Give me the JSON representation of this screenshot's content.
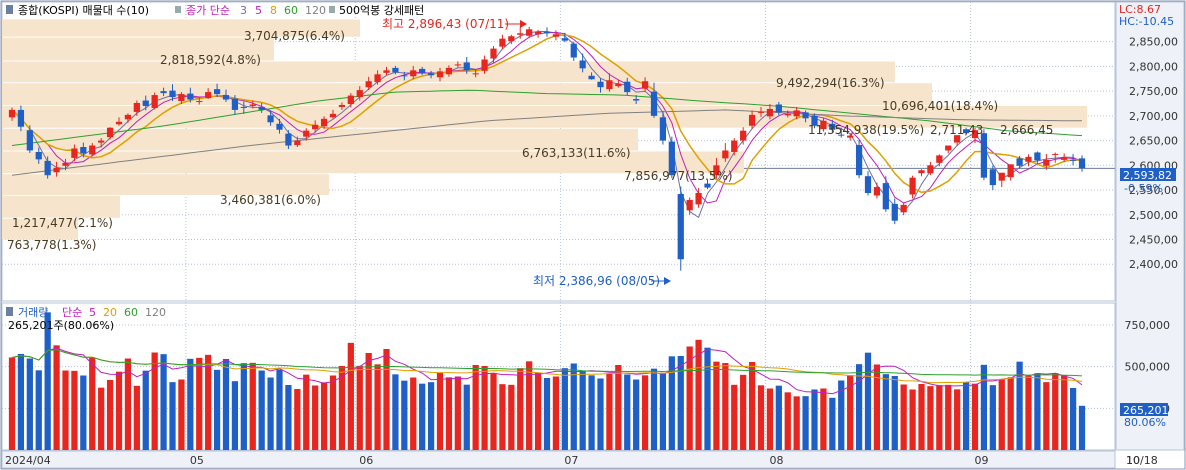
{
  "header": {
    "title": "종합(KOSPI) 매물대 수(10)",
    "ma_label": "종가 단순",
    "ma_periods": [
      "3",
      "5",
      "8",
      "60",
      "120"
    ],
    "pattern_label": "500억봉 강세패턴"
  },
  "indicators": {
    "lc": "LC:8.67",
    "hc": "HC:-10.45"
  },
  "volume_header": {
    "label": "거래량",
    "ma_label": "단순",
    "ma_periods": [
      "5",
      "20",
      "60",
      "120"
    ],
    "current_line": "265,201주(80.06%)"
  },
  "price_axis": [
    "2,850,00",
    "2,800,00",
    "2,750,00",
    "2,700,00",
    "2,650,00",
    "2,600,00",
    "2,550,00",
    "2,500,00",
    "2,450,00",
    "2,400,00"
  ],
  "volume_axis": [
    "750,000",
    "500,000",
    "250,000"
  ],
  "x_axis": [
    "2024/04",
    "05",
    "06",
    "07",
    "08",
    "09",
    "10",
    "10/18"
  ],
  "current": {
    "price": "2,593,82",
    "change": "-0.59%",
    "volume": "265,201",
    "volume_pct": "80.06%"
  },
  "annotations": {
    "high": "최고 2,896,43 (07/11)",
    "low": "최저 2,386,96 (08/05)"
  },
  "profile_labels": [
    "3,704,875(6.4%)",
    "2,818,592(4.8%)",
    "9,492,294(16.3%)",
    "10,696,401(18.4%)",
    "11,354,938(19.5%)",
    "6,763,133(11.6%)",
    "7,856,977(13.5%)",
    "3,460,381(6.0%)",
    "1,217,477(2.1%)",
    "763,778(1.3%)"
  ],
  "level_labels": [
    "2,711,43",
    "2,666,45"
  ],
  "colors": {
    "up": "#e8251e",
    "down": "#1f5fc8",
    "ma3": "#7070a8",
    "ma5": "#c020c0",
    "ma8": "#e0a000",
    "ma60": "#2ea02e",
    "ma120": "#808080",
    "profile": "#f7e4cc",
    "last_price": "#1f5fc8",
    "grid": "#b8c4d8"
  },
  "chart_data": {
    "type": "candlestick",
    "title": "종합(KOSPI)",
    "price_range": [
      2360,
      2910
    ],
    "volume_range": [
      0,
      900000
    ],
    "month_labels": [
      "2024/04",
      "05",
      "06",
      "07",
      "08",
      "09",
      "10"
    ],
    "closes": [
      2712,
      2678,
      2630,
      2612,
      2580,
      2595,
      2605,
      2634,
      2624,
      2640,
      2650,
      2676,
      2688,
      2702,
      2726,
      2720,
      2742,
      2746,
      2738,
      2744,
      2733,
      2730,
      2748,
      2744,
      2733,
      2712,
      2716,
      2723,
      2712,
      2687,
      2672,
      2640,
      2650,
      2670,
      2682,
      2694,
      2704,
      2722,
      2741,
      2752,
      2770,
      2784,
      2792,
      2788,
      2780,
      2792,
      2787,
      2782,
      2790,
      2797,
      2804,
      2792,
      2786,
      2814,
      2836,
      2856,
      2861,
      2867,
      2875,
      2870,
      2867,
      2865,
      2852,
      2818,
      2796,
      2774,
      2758,
      2772,
      2765,
      2748,
      2731,
      2770,
      2700,
      2650,
      2580,
      2410,
      2530,
      2544,
      2555,
      2600,
      2630,
      2650,
      2670,
      2702,
      2708,
      2714,
      2707,
      2704,
      2711,
      2695,
      2680,
      2690,
      2672,
      2660,
      2660,
      2580,
      2544,
      2556,
      2511,
      2488,
      2520,
      2575,
      2590,
      2600,
      2620,
      2640,
      2661,
      2665,
      2671,
      2575,
      2560,
      2585,
      2602,
      2599,
      2617,
      2610,
      2611,
      2623,
      2616,
      2609,
      2594
    ],
    "opens": [
      2697,
      2712,
      2671,
      2627,
      2609,
      2586,
      2599,
      2615,
      2637,
      2622,
      2646,
      2657,
      2683,
      2693,
      2708,
      2731,
      2716,
      2750,
      2751,
      2730,
      2745,
      2729,
      2736,
      2754,
      2742,
      2735,
      2718,
      2720,
      2718,
      2701,
      2684,
      2664,
      2641,
      2658,
      2673,
      2679,
      2697,
      2718,
      2724,
      2738,
      2758,
      2768,
      2787,
      2797,
      2782,
      2780,
      2795,
      2786,
      2778,
      2784,
      2802,
      2808,
      2786,
      2791,
      2816,
      2840,
      2851,
      2864,
      2862,
      2865,
      2870,
      2860,
      2857,
      2846,
      2812,
      2781,
      2769,
      2754,
      2760,
      2769,
      2734,
      2755,
      2749,
      2697,
      2648,
      2542,
      2509,
      2521,
      2563,
      2580,
      2614,
      2627,
      2650,
      2680,
      2706,
      2699,
      2723,
      2701,
      2699,
      2707,
      2700,
      2673,
      2684,
      2662,
      2656,
      2641,
      2578,
      2539,
      2564,
      2522,
      2505,
      2541,
      2584,
      2584,
      2605,
      2630,
      2646,
      2673,
      2655,
      2665,
      2592,
      2569,
      2576,
      2614,
      2607,
      2626,
      2599,
      2623,
      2611,
      2611,
      2614
    ],
    "highs": [
      2717,
      2721,
      2681,
      2636,
      2618,
      2607,
      2613,
      2642,
      2646,
      2645,
      2655,
      2677,
      2697,
      2705,
      2731,
      2741,
      2747,
      2757,
      2764,
      2748,
      2757,
      2739,
      2756,
      2765,
      2753,
      2742,
      2729,
      2731,
      2726,
      2711,
      2694,
      2671,
      2658,
      2675,
      2691,
      2699,
      2712,
      2727,
      2746,
      2760,
      2779,
      2792,
      2799,
      2801,
      2789,
      2801,
      2799,
      2791,
      2797,
      2802,
      2810,
      2819,
      2794,
      2822,
      2841,
      2864,
      2864,
      2881,
      2880,
      2874,
      2879,
      2873,
      2868,
      2850,
      2826,
      2788,
      2776,
      2786,
      2772,
      2777,
      2742,
      2778,
      2767,
      2710,
      2658,
      2557,
      2535,
      2554,
      2571,
      2615,
      2645,
      2655,
      2677,
      2711,
      2718,
      2724,
      2728,
      2711,
      2718,
      2711,
      2705,
      2696,
      2692,
      2676,
      2665,
      2651,
      2588,
      2565,
      2578,
      2533,
      2525,
      2579,
      2592,
      2607,
      2622,
      2640,
      2656,
      2676,
      2676,
      2673,
      2599,
      2576,
      2593,
      2619,
      2622,
      2628,
      2623,
      2626,
      2624,
      2623,
      2620
    ],
    "lows": [
      2690,
      2669,
      2625,
      2603,
      2573,
      2577,
      2590,
      2608,
      2616,
      2618,
      2636,
      2652,
      2680,
      2686,
      2700,
      2711,
      2713,
      2740,
      2730,
      2724,
      2727,
      2723,
      2734,
      2738,
      2728,
      2702,
      2704,
      2715,
      2706,
      2680,
      2664,
      2633,
      2637,
      2650,
      2666,
      2674,
      2695,
      2712,
      2717,
      2731,
      2752,
      2763,
      2782,
      2784,
      2772,
      2774,
      2783,
      2776,
      2770,
      2779,
      2798,
      2785,
      2778,
      2785,
      2806,
      2835,
      2845,
      2856,
      2857,
      2858,
      2860,
      2853,
      2849,
      2811,
      2788,
      2773,
      2747,
      2749,
      2757,
      2742,
      2724,
      2749,
      2696,
      2642,
      2574,
      2387,
      2500,
      2514,
      2552,
      2573,
      2607,
      2620,
      2642,
      2674,
      2698,
      2693,
      2701,
      2697,
      2693,
      2687,
      2675,
      2668,
      2667,
      2656,
      2650,
      2574,
      2539,
      2533,
      2506,
      2481,
      2499,
      2533,
      2578,
      2580,
      2598,
      2624,
      2639,
      2662,
      2645,
      2570,
      2550,
      2556,
      2569,
      2593,
      2598,
      2603,
      2591,
      2605,
      2607,
      2600,
      2587
    ],
    "volumes": [
      555000,
      576000,
      549000,
      478000,
      826000,
      628000,
      477000,
      475000,
      447000,
      554000,
      374000,
      420000,
      470000,
      549000,
      385000,
      476000,
      585000,
      575000,
      407000,
      423000,
      547000,
      553000,
      571000,
      481000,
      546000,
      413000,
      521000,
      523000,
      477000,
      435000,
      482000,
      390000,
      366000,
      452000,
      387000,
      406000,
      447000,
      504000,
      643000,
      505000,
      582000,
      514000,
      606000,
      454000,
      416000,
      435000,
      398000,
      407000,
      463000,
      436000,
      441000,
      392000,
      510000,
      504000,
      460000,
      395000,
      391000,
      491000,
      532000,
      465000,
      432000,
      441000,
      491000,
      519000,
      477000,
      448000,
      429000,
      458000,
      510000,
      453000,
      423000,
      448000,
      488000,
      464000,
      562000,
      564000,
      621000,
      661000,
      614000,
      530000,
      522000,
      391000,
      451000,
      528000,
      388000,
      369000,
      386000,
      346000,
      322000,
      323000,
      363000,
      369000,
      313000,
      417000,
      449000,
      515000,
      584000,
      513000,
      455000,
      444000,
      393000,
      363000,
      396000,
      383000,
      389000,
      391000,
      364000,
      407000,
      398000,
      511000,
      389000,
      423000,
      436000,
      530000,
      445000,
      460000,
      407000,
      461000,
      447000,
      372000,
      265201
    ],
    "ma60_axis": [
      2640,
      2660,
      2680,
      2705,
      2730,
      2748,
      2752,
      2745,
      2742,
      2730,
      2720,
      2705,
      2690,
      2670,
      2660
    ],
    "ma120_axis": [
      2580,
      2610,
      2640,
      2665,
      2690,
      2705,
      2712,
      2700,
      2692,
      2690
    ]
  }
}
